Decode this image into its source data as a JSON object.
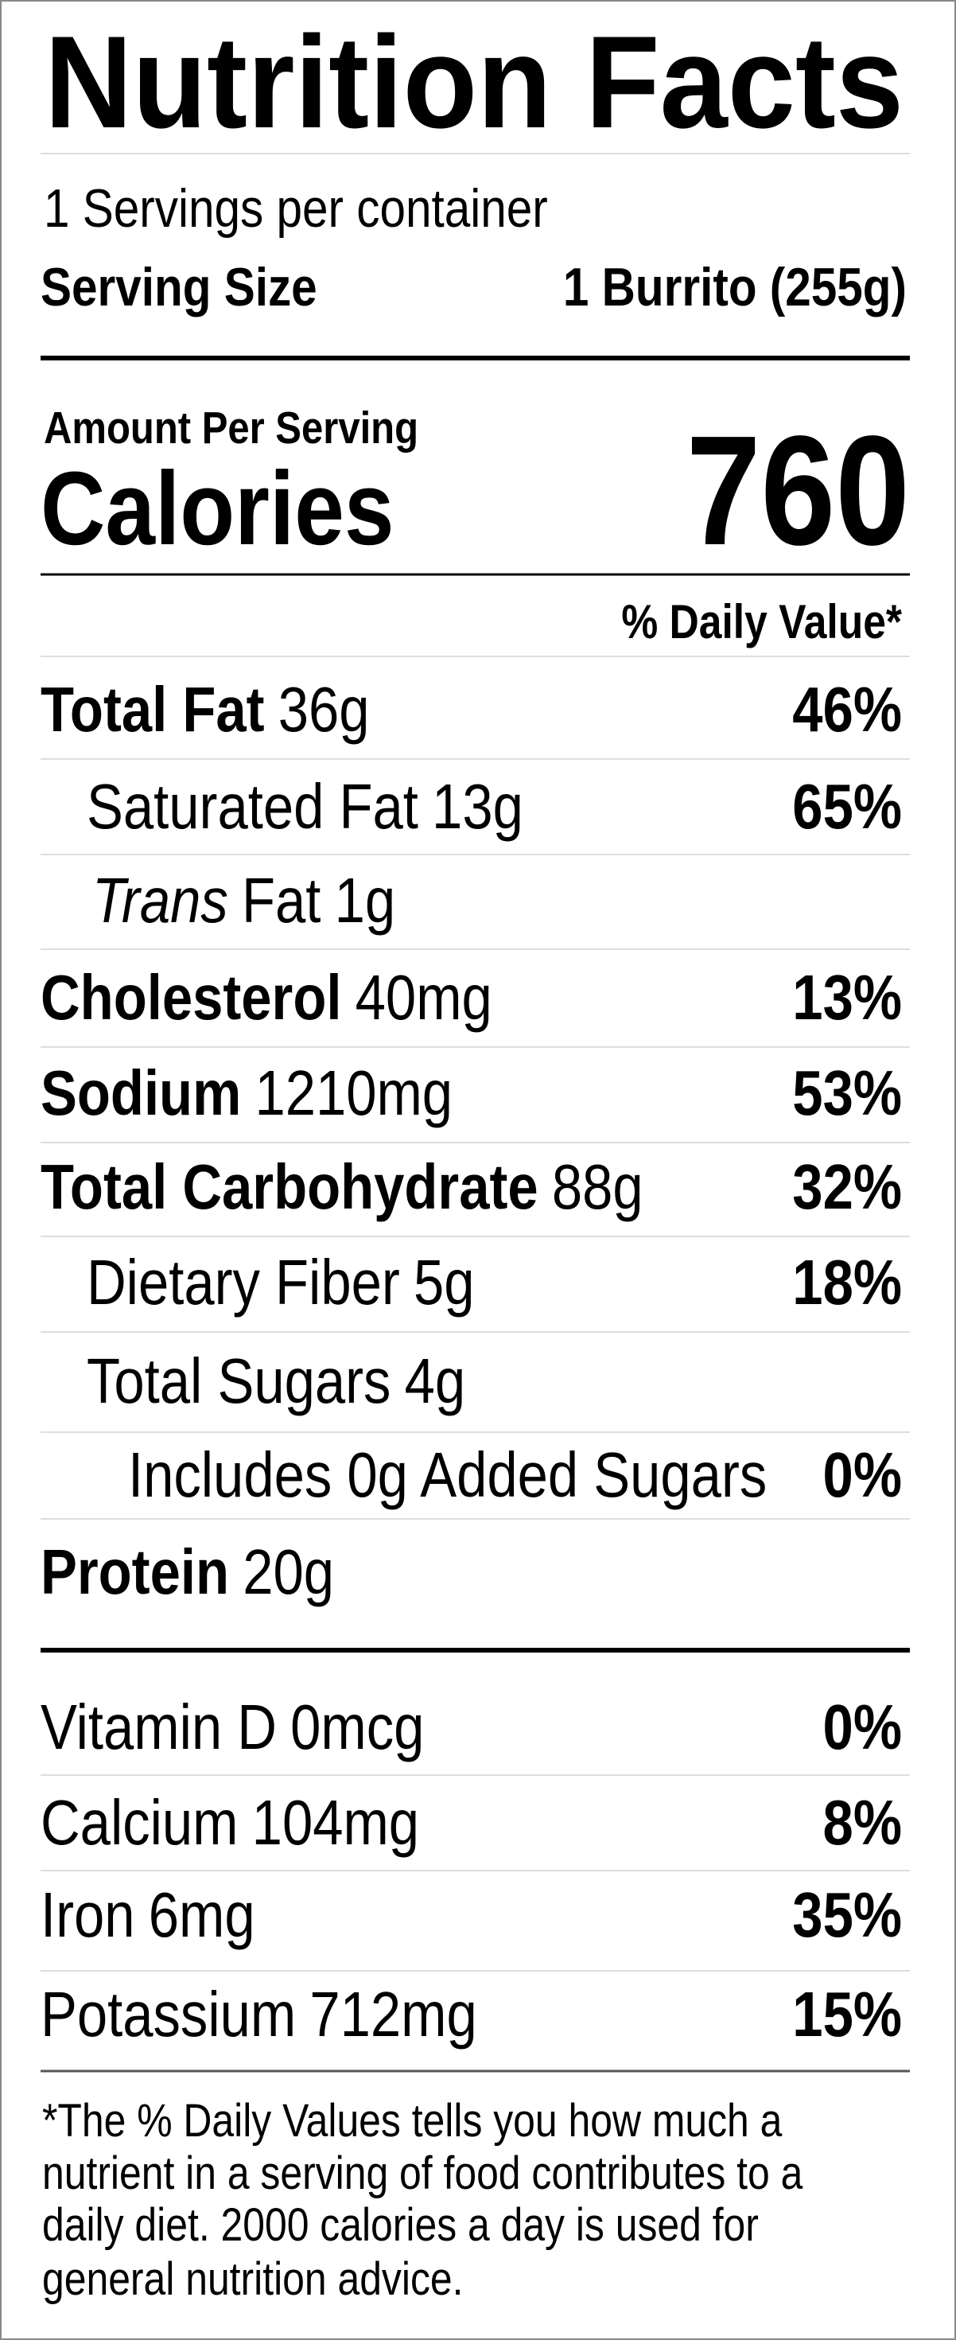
{
  "header": {
    "title": "Nutrition Facts",
    "servings": "1 Servings per container",
    "serving_size_label": "Serving Size",
    "serving_size": "1 Burrito (255g)"
  },
  "calories": {
    "amount_label": "Amount Per Serving",
    "label": "Calories",
    "value": 760
  },
  "daily_value_header": "% Daily Value*",
  "nutrients": [
    {
      "name": "Total Fat",
      "amount": "36g",
      "dv": "46%"
    },
    {
      "name": "Saturated Fat",
      "amount": "13g",
      "dv": "65%"
    },
    {
      "name_italic": "Trans",
      "name": "Fat",
      "amount": "1g"
    },
    {
      "name": "Cholesterol",
      "amount": "40mg",
      "dv": "13%"
    },
    {
      "name": "Sodium",
      "amount": "1210mg",
      "dv": "53%"
    },
    {
      "name": "Total Carbohydrate",
      "amount": "88g",
      "dv": "32%"
    },
    {
      "name": "Dietary Fiber",
      "amount": "5g",
      "dv": "18%"
    },
    {
      "name": "Total Sugars",
      "amount": "4g"
    },
    {
      "name": "Includes 0g Added Sugars",
      "dv": "0%"
    },
    {
      "name": "Protein",
      "amount": "20g"
    }
  ],
  "vitamins": [
    {
      "name": "Vitamin D",
      "amount": "0mcg",
      "dv": "0%"
    },
    {
      "name": "Calcium",
      "amount": "104mg",
      "dv": "8%"
    },
    {
      "name": "Iron",
      "amount": "6mg",
      "dv": "35%"
    },
    {
      "name": "Potassium",
      "amount": "712mg",
      "dv": "15%"
    }
  ],
  "footnote": [
    "*The % Daily Values tells you how much a",
    "nutrient in a serving of food contributes to a",
    "daily diet. 2000 calories a day is used for",
    "general nutrition advice."
  ]
}
